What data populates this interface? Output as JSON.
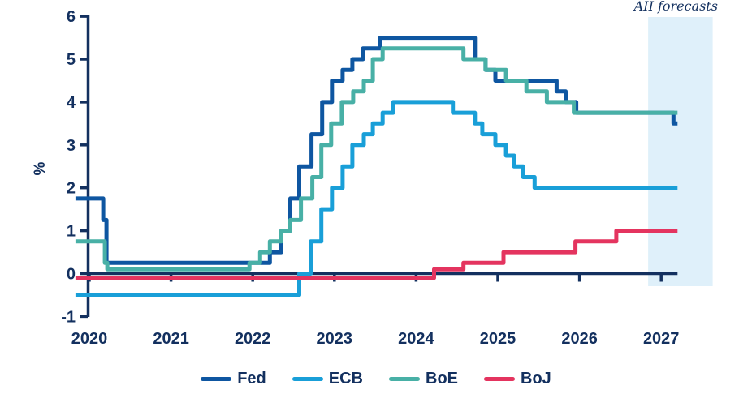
{
  "annotations": {
    "forecast_label": "AII forecasts"
  },
  "colors": {
    "axis": "#13305f",
    "text": "#13305f",
    "forecast_band": "#dff0fa",
    "background": "#ffffff"
  },
  "chart_data": {
    "type": "line",
    "step": "after",
    "title": "",
    "xlabel": "",
    "ylabel": "%",
    "ylim": [
      -1,
      6
    ],
    "grid": false,
    "legend_position": "bottom",
    "y_ticks": [
      6,
      5,
      4,
      3,
      2,
      1,
      0,
      -1
    ],
    "x_ticks": [
      2020,
      2021,
      2022,
      2023,
      2024,
      2025,
      2026,
      2027
    ],
    "x_range": [
      2019.83,
      2027.2
    ],
    "forecast_band_x": [
      2026.84,
      2027.63
    ],
    "series": [
      {
        "name": "Fed",
        "color": "#0e56a1",
        "points": [
          [
            2020.0,
            1.75
          ],
          [
            2020.17,
            1.25
          ],
          [
            2020.21,
            0.25
          ],
          [
            2022.21,
            0.5
          ],
          [
            2022.35,
            1.0
          ],
          [
            2022.46,
            1.75
          ],
          [
            2022.57,
            2.5
          ],
          [
            2022.72,
            3.25
          ],
          [
            2022.85,
            4.0
          ],
          [
            2022.97,
            4.5
          ],
          [
            2023.1,
            4.75
          ],
          [
            2023.22,
            5.0
          ],
          [
            2023.35,
            5.25
          ],
          [
            2023.56,
            5.5
          ],
          [
            2024.72,
            5.0
          ],
          [
            2024.85,
            4.75
          ],
          [
            2024.97,
            4.5
          ],
          [
            2025.72,
            4.25
          ],
          [
            2025.83,
            4.0
          ],
          [
            2025.96,
            3.75
          ],
          [
            2027.15,
            3.5
          ]
        ]
      },
      {
        "name": "ECB",
        "color": "#199fd8",
        "points": [
          [
            2020.0,
            -0.5
          ],
          [
            2022.57,
            0.0
          ],
          [
            2022.71,
            0.75
          ],
          [
            2022.84,
            1.5
          ],
          [
            2022.97,
            2.0
          ],
          [
            2023.1,
            2.5
          ],
          [
            2023.22,
            3.0
          ],
          [
            2023.36,
            3.25
          ],
          [
            2023.47,
            3.5
          ],
          [
            2023.59,
            3.75
          ],
          [
            2023.72,
            4.0
          ],
          [
            2024.45,
            3.75
          ],
          [
            2024.72,
            3.5
          ],
          [
            2024.81,
            3.25
          ],
          [
            2024.97,
            3.0
          ],
          [
            2025.1,
            2.75
          ],
          [
            2025.2,
            2.5
          ],
          [
            2025.31,
            2.25
          ],
          [
            2025.45,
            2.0
          ]
        ]
      },
      {
        "name": "BoE",
        "color": "#48b0a6",
        "points": [
          [
            2020.0,
            0.75
          ],
          [
            2020.19,
            0.25
          ],
          [
            2020.22,
            0.1
          ],
          [
            2021.96,
            0.25
          ],
          [
            2022.09,
            0.5
          ],
          [
            2022.21,
            0.75
          ],
          [
            2022.35,
            1.0
          ],
          [
            2022.46,
            1.25
          ],
          [
            2022.59,
            1.75
          ],
          [
            2022.73,
            2.25
          ],
          [
            2022.84,
            3.0
          ],
          [
            2022.96,
            3.5
          ],
          [
            2023.09,
            4.0
          ],
          [
            2023.23,
            4.25
          ],
          [
            2023.36,
            4.5
          ],
          [
            2023.47,
            5.0
          ],
          [
            2023.59,
            5.25
          ],
          [
            2024.58,
            5.0
          ],
          [
            2024.85,
            4.75
          ],
          [
            2025.1,
            4.5
          ],
          [
            2025.35,
            4.25
          ],
          [
            2025.6,
            4.0
          ],
          [
            2025.93,
            3.75
          ]
        ]
      },
      {
        "name": "BoJ",
        "color": "#e4345f",
        "points": [
          [
            2020.0,
            -0.1
          ],
          [
            2024.22,
            0.1
          ],
          [
            2024.58,
            0.25
          ],
          [
            2025.07,
            0.5
          ],
          [
            2025.95,
            0.75
          ],
          [
            2026.45,
            1.0
          ]
        ]
      }
    ]
  }
}
